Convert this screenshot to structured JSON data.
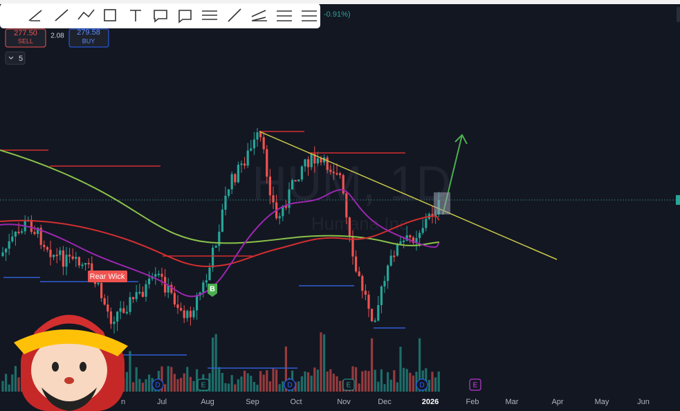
{
  "header": {
    "change": "-0.91%)",
    "sell_price": "277.50",
    "sell_label": "SELL",
    "spread": "2.08",
    "buy_price": "279.58",
    "buy_label": "BUY",
    "interval_count": "5"
  },
  "watermark": {
    "symbol": "HUM, 1D",
    "name": "Humana Inc"
  },
  "annotations": {
    "wick_label": "Rear Wick",
    "signal": "B"
  },
  "events": [
    "D",
    "E",
    "D",
    "E",
    "D",
    "E"
  ],
  "x_axis": {
    "labels": [
      "n",
      "Jul",
      "Aug",
      "Sep",
      "Oct",
      "Nov",
      "Dec",
      "2026",
      "Feb",
      "Mar",
      "Apr",
      "May",
      "Jun"
    ]
  }
}
